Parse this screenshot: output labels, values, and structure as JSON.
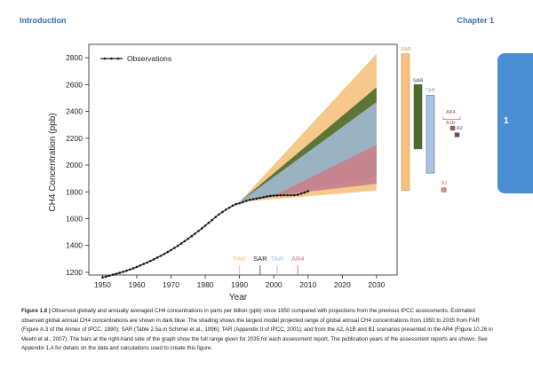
{
  "header": {
    "left": "Introduction",
    "right": "Chapter 1"
  },
  "side_tab": {
    "number": "1"
  },
  "caption": {
    "label": "Figure 1.6 |",
    "text": "Observed globally and annually averaged CH4 concentrations in parts per billion (ppb) since 1950 compared with projections from the previous IPCC assessments. Estimated observed global annual CH4 concentrations are shown in dark blue. The shading shows the largest model projected range of global annual CH4 concentrations from 1950 to 2035 from FAR (Figure A.3 of the Annex of IPCC, 1990); SAR (Table 2.5a in Schimel et al., 1996); TAR (Appendix II of IPCC, 2001); and from the A2, A1B and B1 scenarios presented in the AR4 (Figure 10.26 in Meehl et al., 2007). The bars at the right-hand side of the graph show the full range given for 2035 for each assessment report. The publication years of the assessment reports are shown. See Appendix 1.A for details on the data and calculations used to create this figure."
  },
  "colors": {
    "FAR": "#f6c27e",
    "SAR": "#4d6b2c",
    "TAR": "#a9c3e6",
    "AR4": "#c97f88",
    "A1B": "#b4566a",
    "A2": "#7a3a86",
    "B1": "#e0917a",
    "observations": "#1a1a1a"
  },
  "chart_data": {
    "type": "line",
    "xlabel": "Year",
    "ylabel": "CH4 Concentration (ppb)",
    "xlim": [
      1946,
      2036
    ],
    "ylim": [
      1180,
      2900
    ],
    "xticks": [
      1950,
      1960,
      1970,
      1980,
      1990,
      2000,
      2010,
      2020,
      2030
    ],
    "yticks": [
      1200,
      1400,
      1600,
      1800,
      2000,
      2200,
      2400,
      2600,
      2800
    ],
    "legend": {
      "label": "Observations",
      "position": "top-left"
    },
    "observations": {
      "x": [
        1950,
        1951,
        1952,
        1953,
        1954,
        1955,
        1956,
        1957,
        1958,
        1959,
        1960,
        1961,
        1962,
        1963,
        1964,
        1965,
        1966,
        1967,
        1968,
        1969,
        1970,
        1971,
        1972,
        1973,
        1974,
        1975,
        1976,
        1977,
        1978,
        1979,
        1980,
        1981,
        1982,
        1983,
        1984,
        1985,
        1986,
        1987,
        1988,
        1989,
        1990,
        1991,
        1992,
        1993,
        1994,
        1995,
        1996,
        1997,
        1998,
        1999,
        2000,
        2001,
        2002,
        2003,
        2004,
        2005,
        2006,
        2007,
        2008,
        2009,
        2010
      ],
      "y": [
        1162,
        1168,
        1175,
        1182,
        1189,
        1196,
        1204,
        1212,
        1221,
        1230,
        1240,
        1251,
        1262,
        1273,
        1285,
        1297,
        1310,
        1323,
        1337,
        1351,
        1366,
        1382,
        1398,
        1415,
        1433,
        1451,
        1469,
        1488,
        1508,
        1528,
        1548,
        1569,
        1590,
        1612,
        1632,
        1650,
        1667,
        1682,
        1697,
        1709,
        1715,
        1724,
        1733,
        1740,
        1745,
        1750,
        1755,
        1760,
        1765,
        1770,
        1772,
        1773,
        1774,
        1775,
        1775,
        1775,
        1776,
        1779,
        1787,
        1795,
        1805
      ]
    },
    "projections": [
      {
        "name": "FAR",
        "x": [
          1990,
          2030
        ],
        "upper": [
          1725,
          2830
        ],
        "lower": [
          1725,
          1810
        ]
      },
      {
        "name": "SAR",
        "x": [
          1990,
          2030
        ],
        "upper": [
          1725,
          2580
        ],
        "lower": [
          1725,
          1920
        ]
      },
      {
        "name": "TAR",
        "x": [
          1990,
          2030
        ],
        "upper": [
          1725,
          2470
        ],
        "lower": [
          1725,
          1880
        ]
      },
      {
        "name": "AR4",
        "x": [
          2000,
          2030
        ],
        "upper": [
          1772,
          2150
        ],
        "lower": [
          1772,
          1860
        ]
      }
    ],
    "range_bars_2035": [
      {
        "name": "FAR",
        "low": 1810,
        "high": 2830
      },
      {
        "name": "SAR",
        "low": 2120,
        "high": 2600
      },
      {
        "name": "TAR",
        "low": 1940,
        "high": 2520
      },
      {
        "name": "A1B",
        "low": 2260,
        "high": 2290
      },
      {
        "name": "A2",
        "low": 2210,
        "high": 2240
      },
      {
        "name": "B1",
        "low": 1800,
        "high": 1830
      }
    ],
    "range_bar_labels": [
      "FAR",
      "SAR",
      "TAR",
      "AR4",
      "A1B",
      "A2",
      "B1"
    ],
    "publication_years": [
      {
        "name": "FAR",
        "year": 1990
      },
      {
        "name": "SAR",
        "year": 1996
      },
      {
        "name": "TAR",
        "year": 2001
      },
      {
        "name": "AR4",
        "year": 2007
      }
    ]
  }
}
